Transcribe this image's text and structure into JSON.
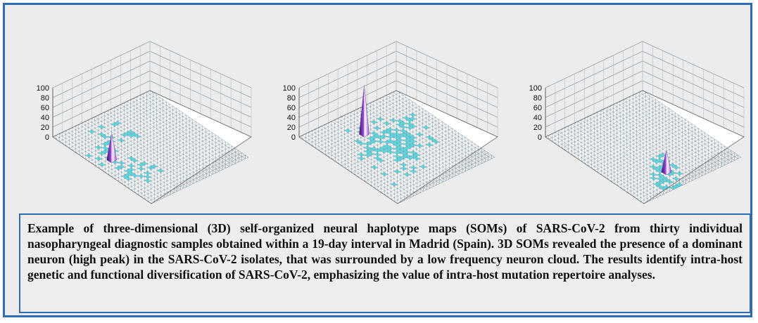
{
  "figure": {
    "caption": "Example of three-dimensional (3D) self-organized neural haplotype maps (SOMs) of SARS-CoV-2 from thirty individual nasopharyngeal diagnostic samples obtained within a 19-day interval in Madrid (Spain). 3D SOMs revealed the presence of a dominant neuron (high peak) in the SARS-CoV-2 isolates, that was surrounded by a low frequency neuron cloud. The results identify intra-host genetic and functional diversification of SARS-CoV-2, emphasizing the value of intra-host mutation repertoire analyses.",
    "colors": {
      "frame": "#2f6db3",
      "panel_bg": "#ececec",
      "grid": "#7f93a0",
      "cell": "#3fd9e0",
      "peak_top": "#ffffff",
      "peak_mid": "#a04cd8",
      "peak_dark": "#3a1a6a"
    }
  },
  "chart_data": [
    {
      "type": "surface3d",
      "title": "",
      "zlabel": "",
      "z_ticks": [
        "0",
        "20",
        "40",
        "60",
        "80",
        "100"
      ],
      "zlim": [
        0,
        100
      ],
      "grid": true,
      "grid_size": [
        30,
        30
      ],
      "peak": {
        "row": 13,
        "col": 4,
        "height": 55
      },
      "cloud": "upper-left and lower-left region, sparse"
    },
    {
      "type": "surface3d",
      "title": "",
      "zlabel": "",
      "z_ticks": [
        "0",
        "20",
        "40",
        "60",
        "80",
        "100"
      ],
      "zlim": [
        0,
        100
      ],
      "grid": true,
      "grid_size": [
        30,
        30
      ],
      "peak": {
        "row": 7,
        "col": 12,
        "height": 100
      },
      "cloud": "broad central region"
    },
    {
      "type": "surface3d",
      "title": "",
      "zlabel": "",
      "z_ticks": [
        "0",
        "20",
        "40",
        "60",
        "80",
        "100"
      ],
      "zlim": [
        0,
        100
      ],
      "grid": true,
      "grid_size": [
        30,
        30
      ],
      "peak": {
        "row": 24,
        "col": 12,
        "height": 45
      },
      "cloud": "lower-center region"
    }
  ]
}
